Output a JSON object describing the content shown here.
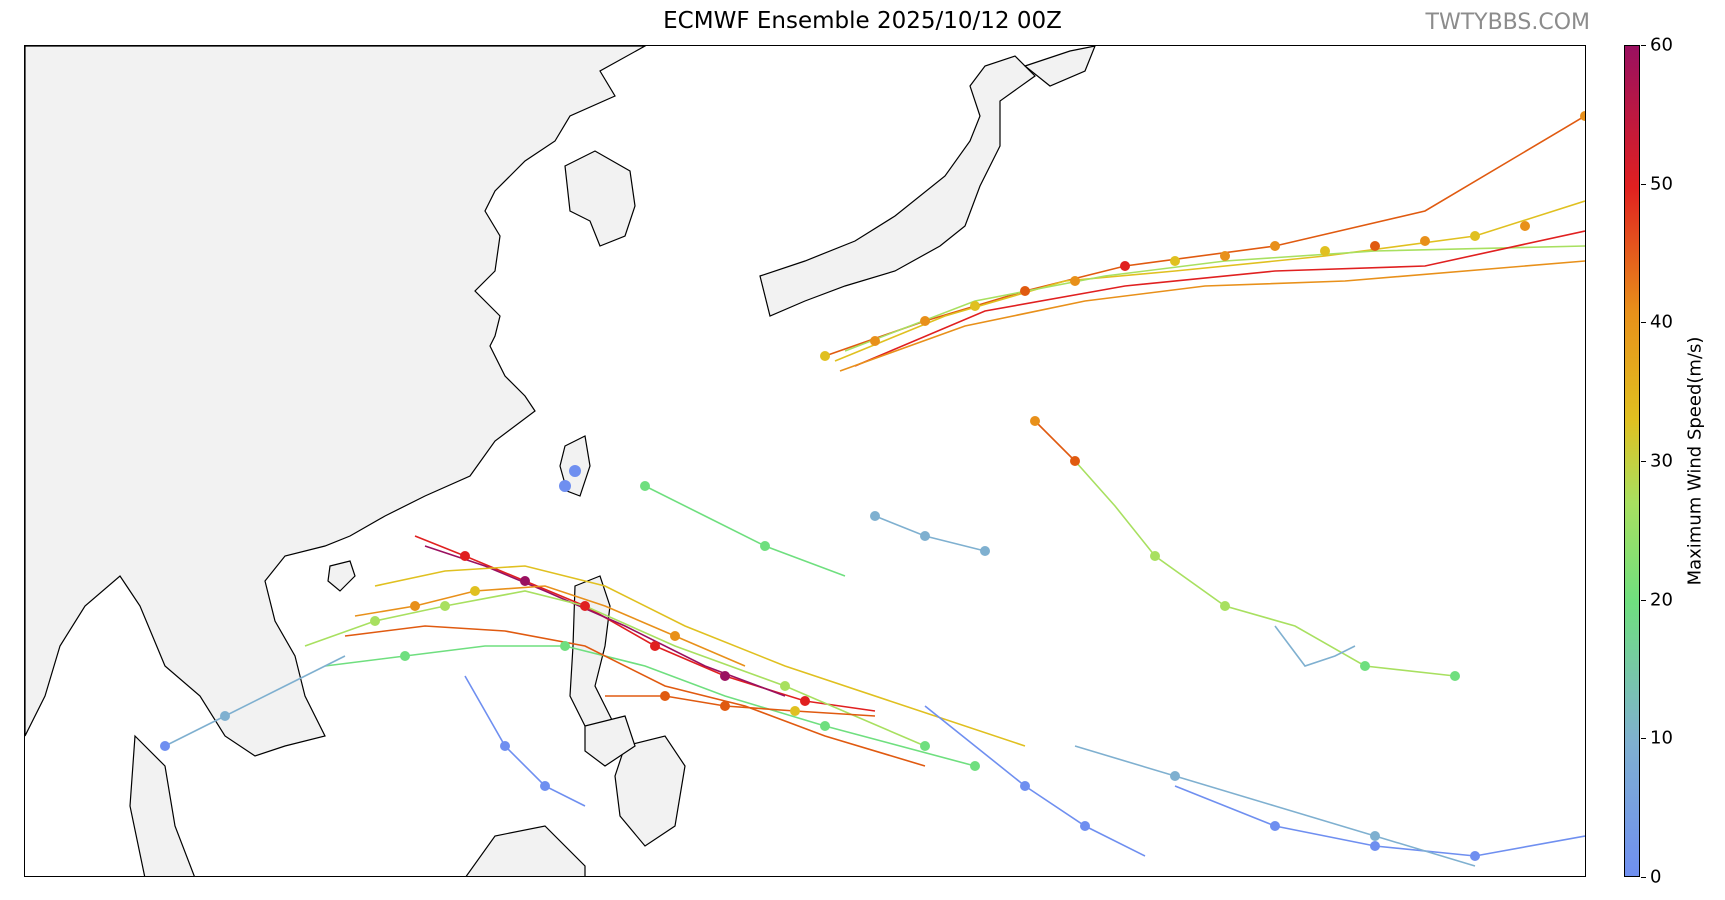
{
  "title": "ECMWF Ensemble 2025/10/12 00Z",
  "watermark": "TWTYBBS.COM",
  "colorbar": {
    "label": "Maximum Wind Speed(m/s)",
    "min": 0,
    "max": 60,
    "ticks": [
      "0",
      "10",
      "20",
      "30",
      "40",
      "50",
      "60"
    ],
    "colors": [
      "#6f8ff0",
      "#7fb0d0",
      "#6fdf7f",
      "#a8e060",
      "#e0c020",
      "#e8901a",
      "#e02020",
      "#9a1060"
    ]
  },
  "map": {
    "land_color": "#f2f2f2",
    "coast_color": "#000000",
    "storm_clusters": [
      {
        "name": "north-recurving-storm",
        "intensity": "strong"
      },
      {
        "name": "south-china-sea-tracks",
        "intensity": "mixed"
      },
      {
        "name": "western-pacific-tracks",
        "intensity": "weak"
      }
    ]
  }
}
